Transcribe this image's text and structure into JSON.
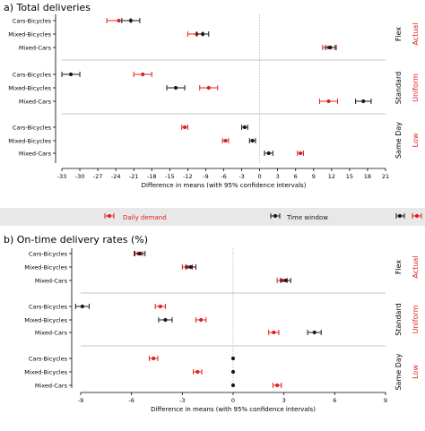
{
  "colors": {
    "daily_demand": "#e02020",
    "time_window": "#1a1a1a",
    "axis": "#000000",
    "separator": "#b0b0b0",
    "zero_line": "#999999",
    "legend_bg": "#e8e8e8"
  },
  "legend": {
    "daily_demand": "Daily demand",
    "time_window": "Time window"
  },
  "chart_data": [
    {
      "type": "scatter",
      "title": "a) Total deliveries",
      "xlabel": "Difference in means (with 95% confidence intervals)",
      "xlim": [
        -33,
        21
      ],
      "xticks": [
        -33,
        -30,
        -27,
        -24,
        -21,
        -18,
        -15,
        -12,
        -9,
        -6,
        -3,
        0,
        3,
        6,
        9,
        12,
        15,
        18,
        21
      ],
      "categories": [
        "Cars-Bicycles",
        "Mixed-Bicycles",
        "Mixed-Cars"
      ],
      "groups": [
        {
          "label": "Flex",
          "right_label": "Actual"
        },
        {
          "label": "Standard",
          "right_label": "Uniform"
        },
        {
          "label": "Same Day",
          "right_label": "Low"
        }
      ],
      "series": [
        {
          "name": "Daily demand",
          "points": [
            {
              "group": 0,
              "category": 0,
              "mean": -23.5,
              "lo": -25.5,
              "hi": -21.5
            },
            {
              "group": 0,
              "category": 1,
              "mean": -10.5,
              "lo": -12,
              "hi": -9.5
            },
            {
              "group": 0,
              "category": 2,
              "mean": 11.5,
              "lo": 10.5,
              "hi": 12.8
            },
            {
              "group": 1,
              "category": 0,
              "mean": -19.5,
              "lo": -21,
              "hi": -18
            },
            {
              "group": 1,
              "category": 1,
              "mean": -8.5,
              "lo": -10,
              "hi": -7
            },
            {
              "group": 1,
              "category": 2,
              "mean": 11.5,
              "lo": 10,
              "hi": 13
            },
            {
              "group": 2,
              "category": 0,
              "mean": -12.5,
              "lo": -13,
              "hi": -12
            },
            {
              "group": 2,
              "category": 1,
              "mean": -5.7,
              "lo": -6.2,
              "hi": -5.2
            },
            {
              "group": 2,
              "category": 2,
              "mean": 6.8,
              "lo": 6.3,
              "hi": 7.3
            }
          ]
        },
        {
          "name": "Time window",
          "points": [
            {
              "group": 0,
              "category": 0,
              "mean": -21.5,
              "lo": -23,
              "hi": -20
            },
            {
              "group": 0,
              "category": 1,
              "mean": -9.5,
              "lo": -10.5,
              "hi": -8.5
            },
            {
              "group": 0,
              "category": 2,
              "mean": 11.8,
              "lo": 11,
              "hi": 12.6
            },
            {
              "group": 1,
              "category": 0,
              "mean": -31.5,
              "lo": -33,
              "hi": -30
            },
            {
              "group": 1,
              "category": 1,
              "mean": -14,
              "lo": -15.5,
              "hi": -12.5
            },
            {
              "group": 1,
              "category": 2,
              "mean": 17.3,
              "lo": 16,
              "hi": 18.6
            },
            {
              "group": 2,
              "category": 0,
              "mean": -2.5,
              "lo": -3,
              "hi": -2
            },
            {
              "group": 2,
              "category": 1,
              "mean": -1.2,
              "lo": -1.7,
              "hi": -0.7
            },
            {
              "group": 2,
              "category": 2,
              "mean": 1.5,
              "lo": 0.8,
              "hi": 2.2
            }
          ]
        }
      ]
    },
    {
      "type": "scatter",
      "title": "b) On-time delivery rates (%)",
      "xlabel": "Difference in means (with 95% confidence intervals)",
      "xlim": [
        -9,
        9
      ],
      "xticks": [
        -9,
        -6,
        -3,
        0,
        3,
        6,
        9
      ],
      "categories": [
        "Cars-Bicycles",
        "Mixed-Bicycles",
        "Mixed-Cars"
      ],
      "groups": [
        {
          "label": "Flex",
          "right_label": "Actual"
        },
        {
          "label": "Standard",
          "right_label": "Uniform"
        },
        {
          "label": "Same Day",
          "right_label": "Low"
        }
      ],
      "series": [
        {
          "name": "Daily demand",
          "points": [
            {
              "group": 0,
              "category": 0,
              "mean": -5.6,
              "lo": -5.85,
              "hi": -5.35
            },
            {
              "group": 0,
              "category": 1,
              "mean": -2.7,
              "lo": -3,
              "hi": -2.4
            },
            {
              "group": 0,
              "category": 2,
              "mean": 2.9,
              "lo": 2.6,
              "hi": 3.2
            },
            {
              "group": 1,
              "category": 0,
              "mean": -4.3,
              "lo": -4.6,
              "hi": -4
            },
            {
              "group": 1,
              "category": 1,
              "mean": -1.9,
              "lo": -2.2,
              "hi": -1.6
            },
            {
              "group": 1,
              "category": 2,
              "mean": 2.4,
              "lo": 2.1,
              "hi": 2.7
            },
            {
              "group": 2,
              "category": 0,
              "mean": -4.7,
              "lo": -4.95,
              "hi": -4.45
            },
            {
              "group": 2,
              "category": 1,
              "mean": -2.1,
              "lo": -2.35,
              "hi": -1.85
            },
            {
              "group": 2,
              "category": 2,
              "mean": 2.6,
              "lo": 2.35,
              "hi": 2.85
            }
          ]
        },
        {
          "name": "Time window",
          "points": [
            {
              "group": 0,
              "category": 0,
              "mean": -5.5,
              "lo": -5.8,
              "hi": -5.2
            },
            {
              "group": 0,
              "category": 1,
              "mean": -2.5,
              "lo": -2.8,
              "hi": -2.2
            },
            {
              "group": 0,
              "category": 2,
              "mean": 3.1,
              "lo": 2.8,
              "hi": 3.4
            },
            {
              "group": 1,
              "category": 0,
              "mean": -8.9,
              "lo": -9.3,
              "hi": -8.5
            },
            {
              "group": 1,
              "category": 1,
              "mean": -4.0,
              "lo": -4.4,
              "hi": -3.6
            },
            {
              "group": 1,
              "category": 2,
              "mean": 4.8,
              "lo": 4.4,
              "hi": 5.2
            },
            {
              "group": 2,
              "category": 0,
              "mean": 0,
              "lo": 0,
              "hi": 0
            },
            {
              "group": 2,
              "category": 1,
              "mean": 0,
              "lo": 0,
              "hi": 0
            },
            {
              "group": 2,
              "category": 2,
              "mean": 0,
              "lo": 0,
              "hi": 0
            }
          ]
        }
      ]
    }
  ]
}
